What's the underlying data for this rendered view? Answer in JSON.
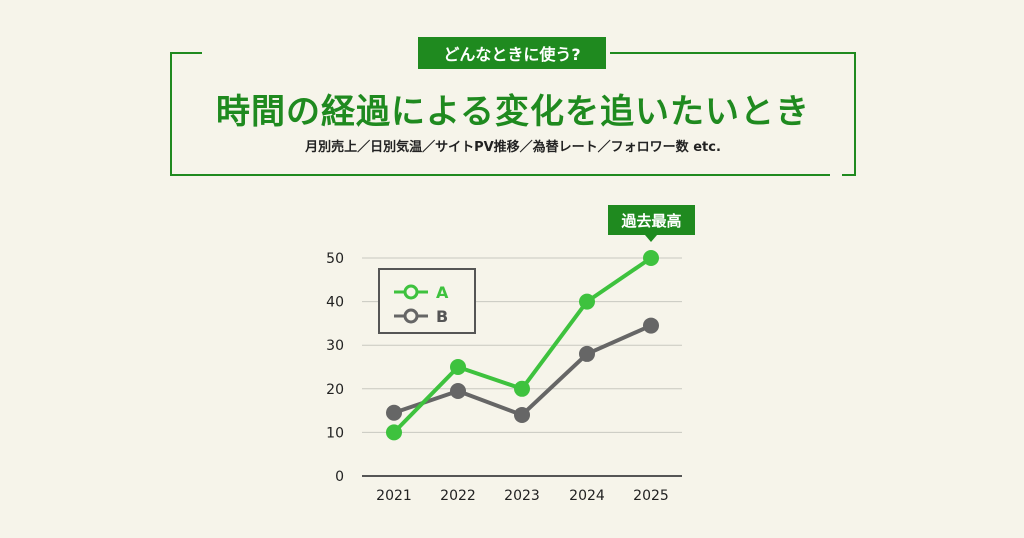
{
  "header": {
    "tag": "どんなときに使う?",
    "headline": "時間の経過による変化を追いたいとき",
    "examples": "月別売上／日別気温／サイトPV推移／為替レート／フォロワー数 etc."
  },
  "chart_data": {
    "type": "line",
    "x": [
      "2021",
      "2022",
      "2023",
      "2024",
      "2025"
    ],
    "yticks": [
      "0",
      "10",
      "20",
      "30",
      "40",
      "50"
    ],
    "ylim": [
      0,
      50
    ],
    "series": [
      {
        "name": "A",
        "values": [
          10,
          25,
          20,
          40,
          50
        ],
        "color": "#3ec23e"
      },
      {
        "name": "B",
        "values": [
          14.5,
          19.5,
          14,
          28,
          34.5
        ],
        "color": "#666666"
      }
    ],
    "legend_position": "top-left",
    "grid": true,
    "annotation": {
      "text": "過去最高",
      "series": "A",
      "x": "2025"
    }
  }
}
